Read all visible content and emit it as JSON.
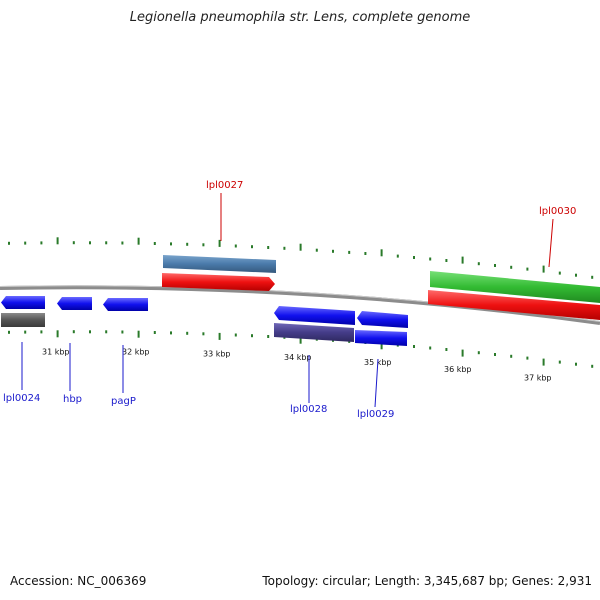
{
  "title": "Legionella pneumophila str. Lens, complete genome",
  "footer": {
    "accession": "Accession: NC_006369",
    "summary": "Topology: circular; Length: 3,345,687 bp; Genes: 2,931"
  },
  "colors": {
    "backbone": "#8c8c8c",
    "tick": "#2a7a2a",
    "label_forward": "#cc0000",
    "label_reverse": "#1a1acc"
  },
  "ticks": [
    {
      "label": "31 kbp"
    },
    {
      "label": "32 kbp"
    },
    {
      "label": "33 kbp"
    },
    {
      "label": "34 kbp"
    },
    {
      "label": "35 kbp"
    },
    {
      "label": "36 kbp"
    },
    {
      "label": "37 kbp"
    }
  ],
  "genes": [
    {
      "label": "lpl0024",
      "strand": "reverse",
      "color": "#1111ee",
      "feature_color": "#555555"
    },
    {
      "label": "hbp",
      "strand": "reverse",
      "color": "#1111ee"
    },
    {
      "label": "pagP",
      "strand": "reverse",
      "color": "#1111ee"
    },
    {
      "label": "lpl0027",
      "strand": "forward",
      "color": "#ee1111",
      "feature_color": "#4a7aaa"
    },
    {
      "label": "lpl0028",
      "strand": "reverse",
      "color": "#1111ee",
      "feature_color": "#443c88"
    },
    {
      "label": "lpl0029",
      "strand": "reverse",
      "color": "#1111ee",
      "feature_color": "#1111ee"
    },
    {
      "label": "lpl0030",
      "strand": "forward",
      "color": "#ee1111",
      "feature_color": "#33bb33"
    }
  ]
}
